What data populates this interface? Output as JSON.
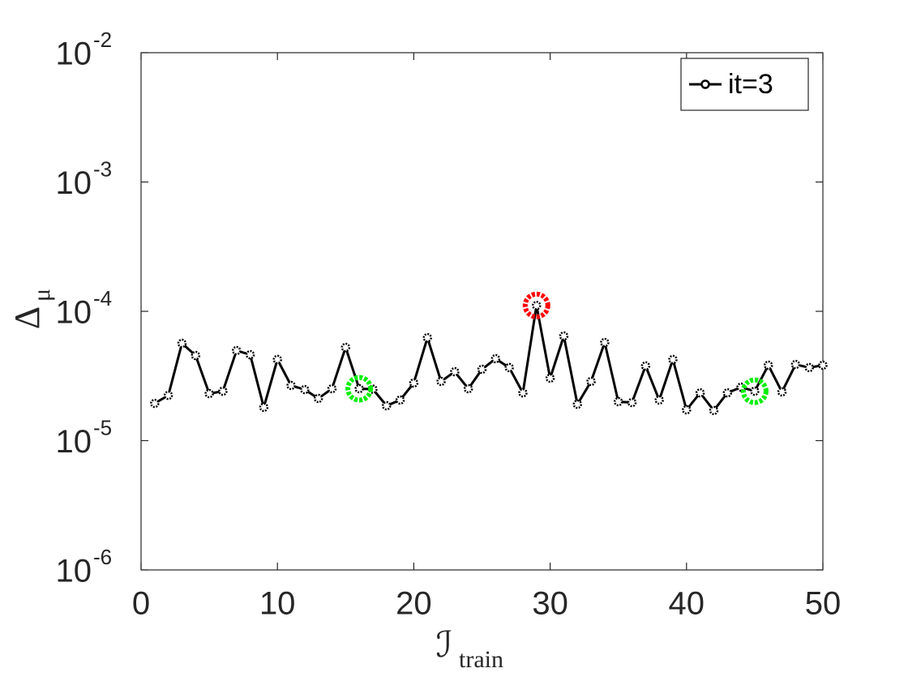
{
  "chart_data": {
    "type": "line",
    "log_y": true,
    "xlabel": {
      "text": "ℐ",
      "subscript": "train"
    },
    "ylabel": {
      "text": "Δ",
      "subscript": "μ"
    },
    "x": [
      1,
      2,
      3,
      4,
      5,
      6,
      7,
      8,
      9,
      10,
      11,
      12,
      13,
      14,
      15,
      16,
      17,
      18,
      19,
      20,
      21,
      22,
      23,
      24,
      25,
      26,
      27,
      28,
      29,
      30,
      31,
      32,
      33,
      34,
      35,
      36,
      37,
      38,
      39,
      40,
      41,
      42,
      43,
      44,
      45,
      46,
      47,
      48,
      49,
      50
    ],
    "series": [
      {
        "name": "it=3",
        "color": "#000000",
        "values": [
          1.94e-05,
          2.24e-05,
          5.65e-05,
          4.55e-05,
          2.31e-05,
          2.41e-05,
          4.97e-05,
          4.62e-05,
          1.81e-05,
          4.24e-05,
          2.67e-05,
          2.48e-05,
          2.12e-05,
          2.52e-05,
          5.26e-05,
          2.52e-05,
          2.5e-05,
          1.86e-05,
          2.06e-05,
          2.79e-05,
          6.25e-05,
          2.87e-05,
          3.41e-05,
          2.52e-05,
          3.56e-05,
          4.3e-05,
          3.67e-05,
          2.34e-05,
          0.000111,
          3.04e-05,
          6.44e-05,
          1.91e-05,
          2.87e-05,
          5.74e-05,
          2e-05,
          1.97e-05,
          3.78e-05,
          2.06e-05,
          4.24e-05,
          1.73e-05,
          2.34e-05,
          1.71e-05,
          2.34e-05,
          2.59e-05,
          2.41e-05,
          3.83e-05,
          2.38e-05,
          3.88e-05,
          3.67e-05,
          3.83e-05
        ]
      }
    ],
    "highlights": [
      {
        "x": 29,
        "color": "#ff0000"
      },
      {
        "x": 16,
        "color": "#00ee00"
      },
      {
        "x": 45,
        "color": "#00ee00"
      }
    ],
    "xlim": [
      0,
      50
    ],
    "xticks": [
      0,
      10,
      20,
      30,
      40,
      50
    ],
    "ylim": [
      1e-06,
      0.01
    ],
    "yticks": [
      {
        "value": 1e-06,
        "label": "10",
        "exponent": "-6"
      },
      {
        "value": 1e-05,
        "label": "10",
        "exponent": "-5"
      },
      {
        "value": 0.0001,
        "label": "10",
        "exponent": "-4"
      },
      {
        "value": 0.001,
        "label": "10",
        "exponent": "-3"
      },
      {
        "value": 0.01,
        "label": "10",
        "exponent": "-2"
      }
    ],
    "legend": "top-right"
  }
}
